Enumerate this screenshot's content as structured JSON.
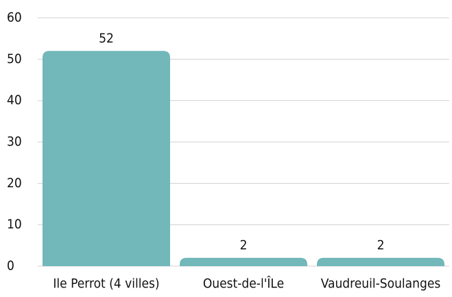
{
  "chart_data": {
    "type": "bar",
    "categories": [
      "Ile Perrot (4 villes)",
      "Ouest-de-l'ÎLe",
      "Vaudreuil-Soulanges"
    ],
    "values": [
      52,
      2,
      2
    ],
    "color": "#72b7b9",
    "ylim": [
      0,
      60
    ],
    "yticks": [
      0,
      10,
      20,
      30,
      40,
      50,
      60
    ],
    "grid": true
  }
}
